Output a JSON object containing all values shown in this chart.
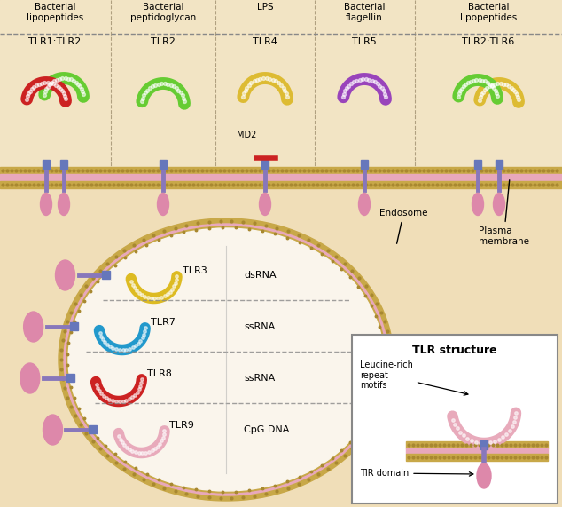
{
  "bg_color": "#f0deb8",
  "top_panel_bg": "#f5e8cc",
  "membrane_pink": "#e8a8bc",
  "membrane_gold": "#c8a848",
  "membrane_inner": "#f0d8c0",
  "top_labels": [
    "Bacterial\nlipopeptides",
    "Bacterial\npeptidoglycan",
    "LPS",
    "Bacterial\nflagellin",
    "Bacterial\nlipopeptides"
  ],
  "tlr_labels_top": [
    "TLR1:TLR2",
    "TLR2",
    "TLR4",
    "TLR5",
    "TLR2:TLR6"
  ],
  "endosome_tlrs": [
    "TLR3",
    "TLR7",
    "TLR8",
    "TLR9"
  ],
  "endosome_ligands": [
    "dsRNA",
    "ssRNA",
    "ssRNA",
    "CpG DNA"
  ],
  "tlr_colors": {
    "TLR1": "#cc2222",
    "TLR2": "#66cc33",
    "TLR4": "#ddbb33",
    "TLR5": "#9944bb",
    "TLR6": "#ddbb33",
    "TLR3": "#ddbb22",
    "TLR7": "#2299cc",
    "TLR8": "#cc2222",
    "TLR9": "#e8aabb",
    "stem": "#8877bb",
    "tir": "#dd88aa",
    "connector": "#6677bb"
  },
  "annotation_plasma": "Plasma\nmembrane",
  "annotation_endosome": "Endosome",
  "inset_title": "TLR structure",
  "inset_label1": "Leucine-rich\nrepeat\nmotifs",
  "inset_label2": "TIR domain"
}
